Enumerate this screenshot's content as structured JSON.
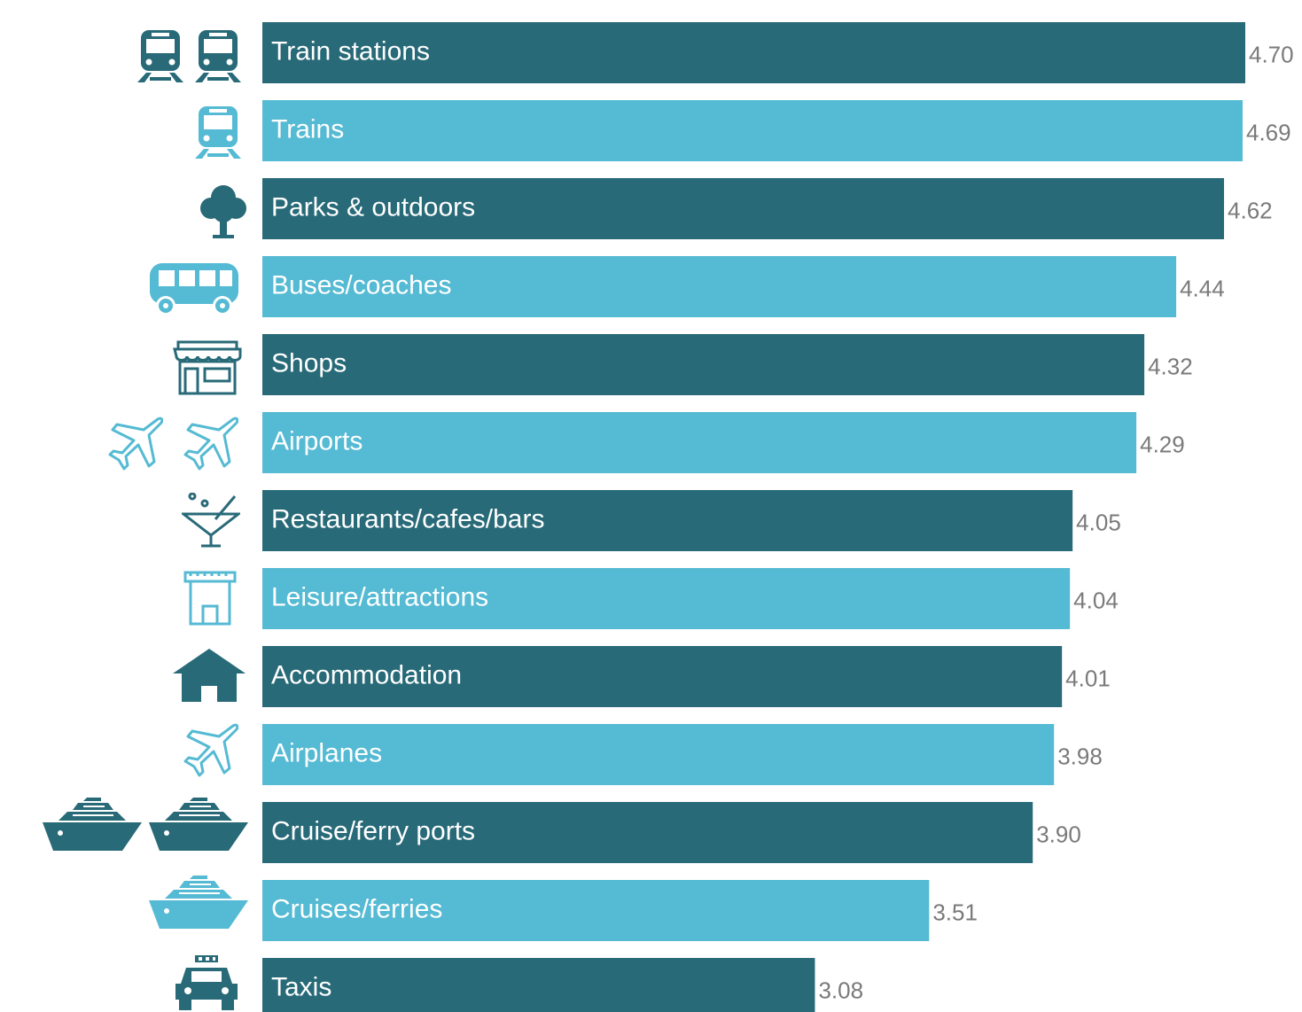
{
  "chart_data": {
    "type": "bar",
    "orientation": "horizontal",
    "categories": [
      "Train stations",
      "Trains",
      "Parks & outdoors",
      "Buses/coaches",
      "Shops",
      "Airports",
      "Restaurants/cafes/bars",
      "Leisure/attractions",
      "Accommodation",
      "Airplanes",
      "Cruise/ferry ports",
      "Cruises/ferries",
      "Taxis"
    ],
    "values": [
      4.7,
      4.69,
      4.62,
      4.44,
      4.32,
      4.29,
      4.05,
      4.04,
      4.01,
      3.98,
      3.9,
      3.51,
      3.08
    ],
    "value_labels": [
      "4.70",
      "4.69",
      "4.62",
      "4.44",
      "4.32",
      "4.29",
      "4.05",
      "4.04",
      "4.01",
      "3.98",
      "3.90",
      "3.51",
      "3.08"
    ],
    "colors": [
      "#286a78",
      "#55bad3",
      "#286a78",
      "#55bad3",
      "#286a78",
      "#55bad3",
      "#286a78",
      "#55bad3",
      "#286a78",
      "#55bad3",
      "#286a78",
      "#55bad3",
      "#286a78"
    ],
    "xlim": [
      1,
      4.7
    ]
  }
}
